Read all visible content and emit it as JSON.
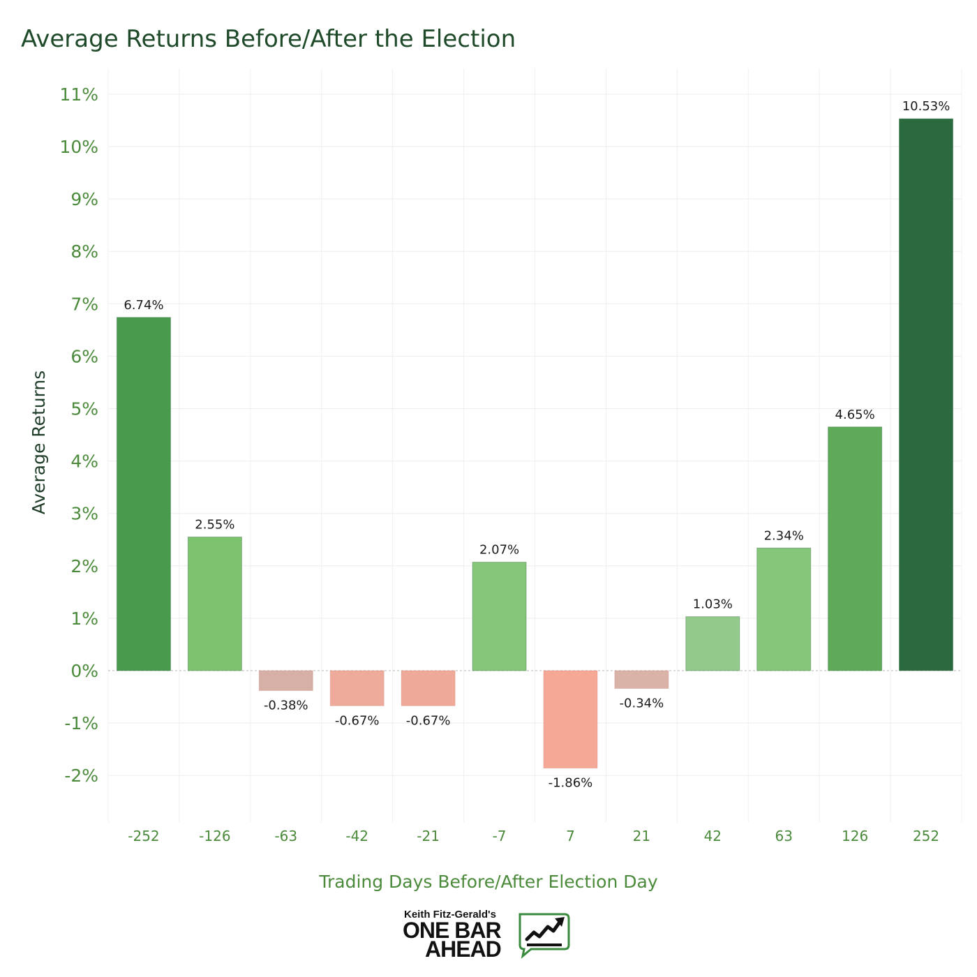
{
  "title": "Average Returns Before/After the Election",
  "chart_data": {
    "type": "bar",
    "title": "Average Returns Before/After the Election",
    "xlabel": "Trading Days Before/After Election Day",
    "ylabel": "Average Returns",
    "categories": [
      "-252",
      "-126",
      "-63",
      "-42",
      "-21",
      "-7",
      "7",
      "21",
      "42",
      "63",
      "126",
      "252"
    ],
    "values": [
      6.74,
      2.55,
      -0.38,
      -0.67,
      -0.67,
      2.07,
      -1.86,
      -0.34,
      1.03,
      2.34,
      4.65,
      10.53
    ],
    "value_labels": [
      "6.74%",
      "2.55%",
      "-0.38%",
      "-0.67%",
      "-0.67%",
      "2.07%",
      "-1.86%",
      "-0.34%",
      "1.03%",
      "2.34%",
      "4.65%",
      "10.53%"
    ],
    "bar_colors": [
      "#4a9a4e",
      "#7dc26e",
      "#d6b0a6",
      "#eeaa9a",
      "#efa999",
      "#86c67a",
      "#f5a896",
      "#d9b3a8",
      "#93c98a",
      "#86c67a",
      "#5eaa58",
      "#2a6a3e"
    ],
    "yticks": [
      11,
      10,
      9,
      8,
      7,
      6,
      5,
      4,
      3,
      2,
      1,
      0,
      -1,
      -2
    ],
    "ytick_labels": [
      "11%",
      "10%",
      "9%",
      "8%",
      "7%",
      "6%",
      "5%",
      "4%",
      "3%",
      "2%",
      "1%",
      "0%",
      "-1%",
      "-2%"
    ],
    "ylim": [
      -2.9,
      11.5
    ],
    "grid": true,
    "legend": "none"
  },
  "logo": {
    "byline": "Keith Fitz-Gerald's",
    "line1": "ONE BAR",
    "line2": "AHEAD"
  }
}
